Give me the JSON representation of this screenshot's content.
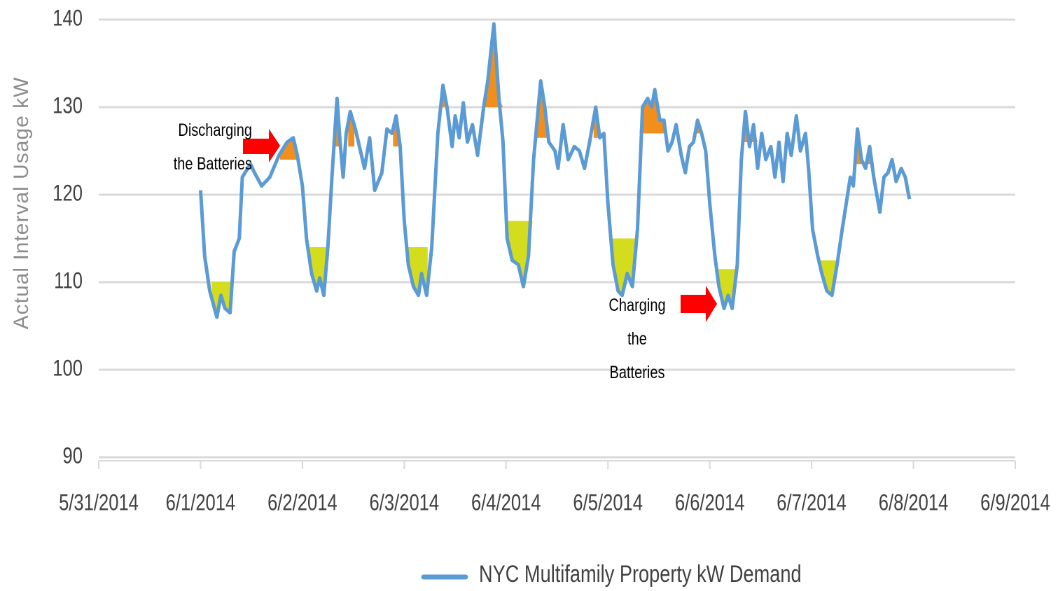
{
  "chart_data": {
    "type": "line",
    "y_label": "Actual Interval Usage kW",
    "ylim": [
      90,
      140
    ],
    "yticks": [
      90,
      100,
      110,
      120,
      130,
      140
    ],
    "xlim": [
      0,
      9
    ],
    "xticks": [
      {
        "value": 0,
        "label": "5/31/2014"
      },
      {
        "value": 1,
        "label": "6/1/2014"
      },
      {
        "value": 2,
        "label": "6/2/2014"
      },
      {
        "value": 3,
        "label": "6/3/2014"
      },
      {
        "value": 4,
        "label": "6/4/2014"
      },
      {
        "value": 5,
        "label": "6/5/2014"
      },
      {
        "value": 6,
        "label": "6/6/2014"
      },
      {
        "value": 7,
        "label": "6/7/2014"
      },
      {
        "value": 8,
        "label": "6/8/2014"
      },
      {
        "value": 9,
        "label": "6/9/2014"
      }
    ],
    "grid": true,
    "legend": "bottom",
    "x": [
      1.0,
      1.04,
      1.09,
      1.16,
      1.2,
      1.24,
      1.29,
      1.33,
      1.38,
      1.41,
      1.49,
      1.53,
      1.6,
      1.68,
      1.77,
      1.85,
      1.91,
      1.95,
      2.0,
      2.04,
      2.09,
      2.14,
      2.17,
      2.21,
      2.25,
      2.29,
      2.34,
      2.37,
      2.4,
      2.43,
      2.47,
      2.52,
      2.57,
      2.61,
      2.66,
      2.71,
      2.78,
      2.83,
      2.88,
      2.92,
      2.96,
      3.0,
      3.04,
      3.09,
      3.14,
      3.17,
      3.22,
      3.27,
      3.33,
      3.38,
      3.42,
      3.47,
      3.5,
      3.54,
      3.58,
      3.62,
      3.67,
      3.72,
      3.78,
      3.82,
      3.88,
      3.93,
      3.97,
      4.01,
      4.06,
      4.12,
      4.17,
      4.22,
      4.27,
      4.34,
      4.38,
      4.42,
      4.48,
      4.51,
      4.56,
      4.61,
      4.67,
      4.72,
      4.77,
      4.82,
      4.88,
      4.92,
      4.96,
      5.0,
      5.05,
      5.1,
      5.14,
      5.19,
      5.24,
      5.29,
      5.34,
      5.39,
      5.43,
      5.46,
      5.51,
      5.55,
      5.59,
      5.63,
      5.67,
      5.72,
      5.76,
      5.8,
      5.84,
      5.88,
      5.92,
      5.96,
      6.0,
      6.05,
      6.09,
      6.14,
      6.18,
      6.22,
      6.27,
      6.31,
      6.35,
      6.39,
      6.43,
      6.47,
      6.51,
      6.55,
      6.6,
      6.64,
      6.68,
      6.72,
      6.76,
      6.8,
      6.85,
      6.89,
      6.94,
      6.97,
      7.01,
      7.06,
      7.1,
      7.15,
      7.2,
      7.25,
      7.3,
      7.34,
      7.38,
      7.41,
      7.45,
      7.49,
      7.53,
      7.57,
      7.61,
      7.64,
      7.67,
      7.71,
      7.75,
      7.79,
      7.83,
      7.88,
      7.92,
      7.96
    ],
    "series": [
      {
        "name": "NYC Multifamily Property kW Demand",
        "color": "#5b9bd5",
        "values": [
          120.5,
          113,
          109,
          106,
          108.5,
          107,
          106.5,
          113.5,
          115,
          122,
          123.5,
          122.5,
          121,
          122,
          124.5,
          126,
          126.5,
          124.5,
          121,
          115,
          111,
          109,
          110.5,
          108.5,
          114,
          122,
          131,
          126,
          122,
          127,
          129.5,
          127.5,
          125,
          123,
          126.5,
          120.5,
          122.5,
          127.5,
          127,
          129,
          125.5,
          117,
          112,
          109.5,
          108.5,
          111,
          108.5,
          114,
          127,
          132.5,
          130,
          125.5,
          129,
          126.5,
          130.5,
          126,
          128,
          124.5,
          130,
          133,
          139.5,
          131,
          126,
          115,
          112.5,
          112,
          109.5,
          113,
          124,
          133,
          130,
          126,
          125,
          123,
          128,
          124,
          125.5,
          125,
          123,
          126,
          130,
          126.5,
          127,
          119,
          112,
          109,
          108.5,
          111,
          109.5,
          116,
          130,
          131,
          130,
          132,
          128.5,
          128.5,
          125,
          126,
          128,
          124.5,
          122.5,
          125.5,
          126,
          128.5,
          127,
          125,
          119,
          113,
          109.5,
          107,
          108.5,
          107,
          112,
          124,
          129.5,
          125.5,
          128,
          123,
          127,
          124,
          125.5,
          122,
          126,
          121.5,
          127,
          124.5,
          129,
          125,
          127,
          123,
          116,
          113,
          111,
          109,
          108.5,
          112,
          116,
          119,
          122,
          121,
          127.5,
          124,
          123,
          125.5,
          122,
          120,
          118,
          122,
          122.5,
          124,
          121.5,
          123,
          122,
          119.5
        ]
      }
    ],
    "discharge": {
      "color": "#f28e1c",
      "regions": [
        {
          "start": 1.78,
          "end": 1.96,
          "level": 124
        },
        {
          "start": 2.31,
          "end": 2.37,
          "level": 125.5
        },
        {
          "start": 2.45,
          "end": 2.51,
          "level": 125.5
        },
        {
          "start": 2.89,
          "end": 2.95,
          "level": 125.5
        },
        {
          "start": 3.34,
          "end": 3.42,
          "level": 130
        },
        {
          "start": 3.79,
          "end": 3.97,
          "level": 130
        },
        {
          "start": 4.3,
          "end": 4.42,
          "level": 126.5
        },
        {
          "start": 4.54,
          "end": 4.58,
          "level": 126.5
        },
        {
          "start": 4.86,
          "end": 4.95,
          "level": 126.5
        },
        {
          "start": 5.31,
          "end": 5.56,
          "level": 127
        },
        {
          "start": 5.66,
          "end": 5.7,
          "level": 127
        },
        {
          "start": 5.85,
          "end": 5.9,
          "level": 127
        },
        {
          "start": 6.33,
          "end": 6.49,
          "level": 126
        },
        {
          "start": 6.86,
          "end": 6.9,
          "level": 126
        },
        {
          "start": 7.44,
          "end": 7.58,
          "level": 123.5
        }
      ]
    },
    "charge": {
      "color": "#d4dc1e",
      "regions": [
        {
          "start": 1.11,
          "end": 1.31,
          "level": 110
        },
        {
          "start": 2.05,
          "end": 2.26,
          "level": 114
        },
        {
          "start": 3.03,
          "end": 3.23,
          "level": 114
        },
        {
          "start": 4.02,
          "end": 4.26,
          "level": 117
        },
        {
          "start": 5.04,
          "end": 5.27,
          "level": 115
        },
        {
          "start": 6.06,
          "end": 6.26,
          "level": 111.5
        },
        {
          "start": 7.06,
          "end": 7.24,
          "level": 112.5
        }
      ]
    },
    "annotations": [
      "Discharging the Batteries",
      "Charging the Batteries"
    ]
  }
}
